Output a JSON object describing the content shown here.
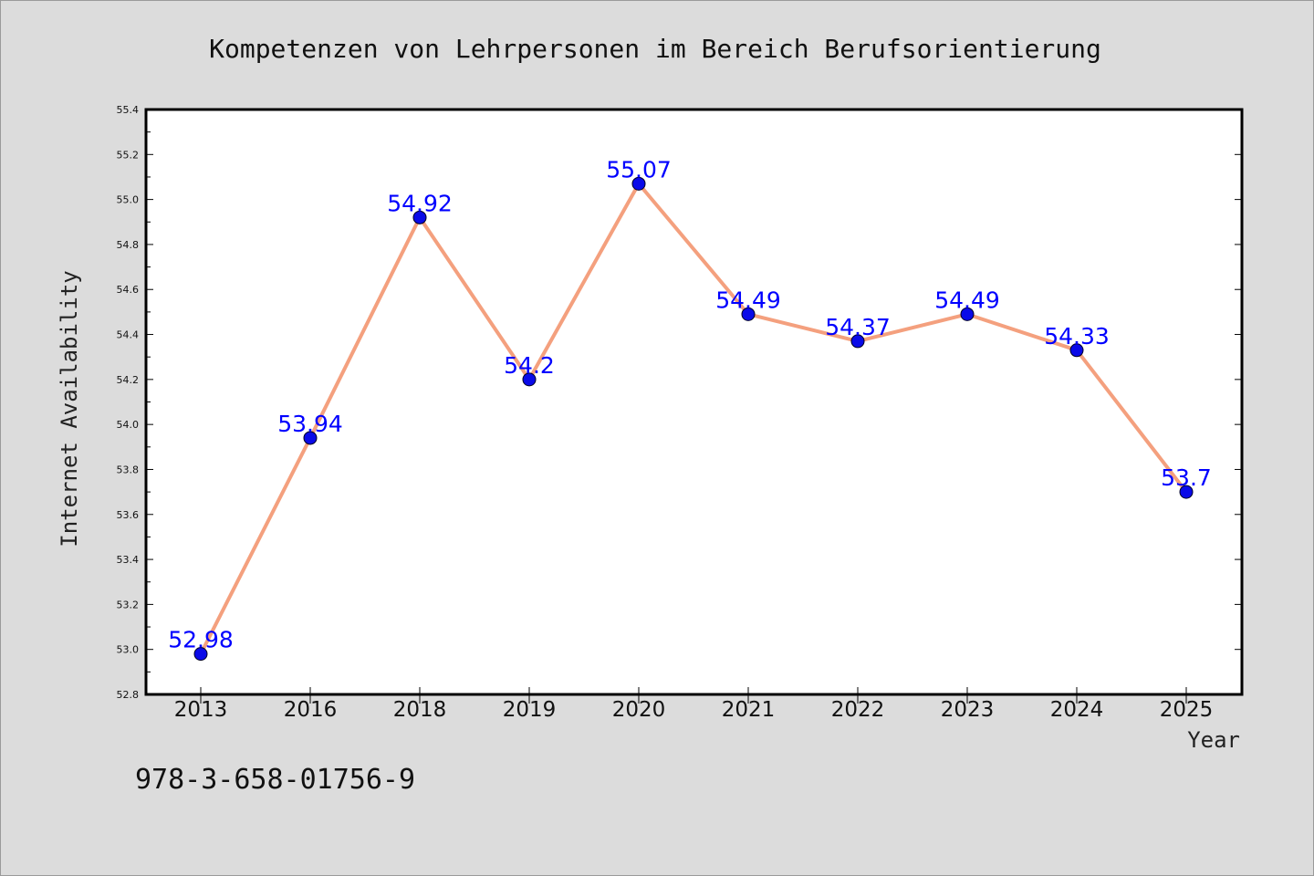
{
  "chart_data": {
    "type": "line",
    "title": "Kompetenzen von Lehrpersonen im Bereich Berufsorientierung",
    "xlabel": "Year",
    "ylabel": "Internet Availability",
    "categories": [
      "2013",
      "2016",
      "2018",
      "2019",
      "2020",
      "2021",
      "2022",
      "2023",
      "2024",
      "2025"
    ],
    "series": [
      {
        "values": [
          52.98,
          53.94,
          54.92,
          54.2,
          55.07,
          54.49,
          54.37,
          54.49,
          54.33,
          53.7
        ],
        "line_color": "#f4a07e",
        "marker_color": "#0a0ae8",
        "label_color": "#0000ff"
      }
    ],
    "ylim": [
      52.8,
      55.4
    ],
    "yticks": [
      52.8,
      53.0,
      53.2,
      53.4,
      53.6,
      53.8,
      54.0,
      54.2,
      54.4,
      54.6,
      54.8,
      55.0,
      55.2,
      55.4
    ],
    "ytick_labels": [
      "52.8",
      "53.0",
      "53.2",
      "53.4",
      "53.6",
      "53.8",
      "54.0",
      "54.2",
      "54.4",
      "54.6",
      "54.8",
      "55.0",
      "55.2",
      "55.4"
    ],
    "data_labels": [
      "52.98",
      "53.94",
      "54.92",
      "54.2",
      "55.07",
      "54.49",
      "54.37",
      "54.49",
      "54.33",
      "53.7"
    ],
    "grid": false,
    "legend": "none"
  },
  "annotation": "978-3-658-01756-9",
  "colors": {
    "background": "#dcdcdc",
    "plot_background": "#ffffff",
    "axes": "#000000"
  }
}
